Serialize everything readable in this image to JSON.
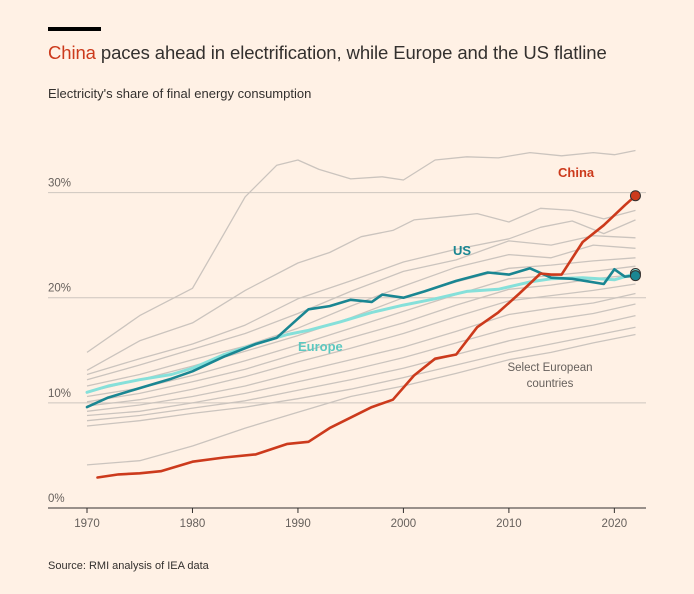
{
  "header": {
    "title_highlight": "China",
    "title_rest": " paces ahead in electrification, while Europe and the US flatline",
    "subtitle": "Electricity's share of final energy consumption"
  },
  "footer": {
    "source": "Source: RMI analysis of IEA data"
  },
  "colors": {
    "china": "#cc3a1c",
    "us": "#1a8692",
    "europe": "#86e0da",
    "countries": "#cbc4be",
    "grid": "#cec6bf",
    "text": "#33302e"
  },
  "chart_data": {
    "type": "line",
    "title": "China paces ahead in electrification, while Europe and the US flatline",
    "subtitle": "Electricity's share of final energy consumption",
    "xlabel": "",
    "ylabel": "",
    "xlim": [
      1970,
      2023
    ],
    "ylim": [
      0,
      35
    ],
    "x_ticks": [
      1970,
      1980,
      1990,
      2000,
      2010,
      2020
    ],
    "y_ticks": [
      0,
      10,
      20,
      30
    ],
    "y_tick_labels": [
      "0%",
      "10%",
      "20%",
      "30%"
    ],
    "grid": "horizontal",
    "annotations": [
      {
        "text": "China",
        "series": "China"
      },
      {
        "text": "US",
        "series": "US"
      },
      {
        "text": "Europe",
        "series": "Europe"
      },
      {
        "text": "Select European countries",
        "series": "countries"
      }
    ],
    "series": [
      {
        "name": "China",
        "x": [
          1971,
          1973,
          1975,
          1977,
          1980,
          1983,
          1986,
          1989,
          1991,
          1993,
          1995,
          1997,
          1999,
          2001,
          2003,
          2005,
          2007,
          2009,
          2011,
          2013,
          2014,
          2015,
          2017,
          2019,
          2021,
          2022
        ],
        "values": [
          2.9,
          3.2,
          3.3,
          3.5,
          4.4,
          4.8,
          5.1,
          6.1,
          6.3,
          7.6,
          8.6,
          9.6,
          10.3,
          12.6,
          14.2,
          14.6,
          17.2,
          18.6,
          20.4,
          22.3,
          22.2,
          22.2,
          25.3,
          26.9,
          28.8,
          29.7
        ]
      },
      {
        "name": "US",
        "x": [
          1970,
          1972,
          1975,
          1978,
          1980,
          1983,
          1986,
          1988,
          1990,
          1991,
          1993,
          1995,
          1997,
          1998,
          2000,
          2002,
          2005,
          2008,
          2010,
          2012,
          2014,
          2016,
          2019,
          2020,
          2021,
          2022
        ],
        "values": [
          9.6,
          10.5,
          11.4,
          12.3,
          13.0,
          14.4,
          15.6,
          16.2,
          18.0,
          18.9,
          19.2,
          19.8,
          19.6,
          20.3,
          20.0,
          20.6,
          21.6,
          22.4,
          22.2,
          22.8,
          21.9,
          21.8,
          21.3,
          22.7,
          22.0,
          22.1
        ]
      },
      {
        "name": "Europe",
        "x": [
          1970,
          1972,
          1975,
          1978,
          1980,
          1983,
          1986,
          1989,
          1991,
          1994,
          1997,
          2000,
          2003,
          2006,
          2009,
          2012,
          2014,
          2017,
          2020,
          2022
        ],
        "values": [
          11.0,
          11.6,
          12.2,
          12.7,
          13.3,
          14.6,
          15.6,
          16.5,
          16.9,
          17.7,
          18.6,
          19.3,
          19.9,
          20.6,
          20.8,
          21.5,
          21.8,
          21.9,
          21.7,
          22.3
        ]
      },
      {
        "name": "",
        "group": "countries",
        "x": [
          1970,
          1975,
          1980,
          1983,
          1985,
          1988,
          1990,
          1992,
          1995,
          1998,
          2000,
          2003,
          2006,
          2009,
          2012,
          2015,
          2018,
          2020,
          2022
        ],
        "values": [
          14.8,
          18.3,
          20.9,
          26.1,
          29.6,
          32.6,
          33.1,
          32.2,
          31.3,
          31.5,
          31.2,
          33.1,
          33.4,
          33.3,
          33.8,
          33.5,
          33.8,
          33.6,
          34.0
        ]
      },
      {
        "name": "",
        "group": "countries",
        "x": [
          1970,
          1975,
          1980,
          1985,
          1990,
          1993,
          1996,
          1999,
          2001,
          2004,
          2007,
          2010,
          2013,
          2016,
          2019,
          2022
        ],
        "values": [
          13.1,
          15.9,
          17.6,
          20.7,
          23.3,
          24.3,
          25.8,
          26.4,
          27.4,
          27.7,
          28.0,
          27.2,
          28.5,
          28.3,
          27.5,
          28.3
        ]
      },
      {
        "name": "",
        "group": "countries",
        "x": [
          1970,
          1975,
          1980,
          1985,
          1990,
          1995,
          2000,
          2005,
          2010,
          2013,
          2016,
          2019,
          2022
        ],
        "values": [
          12.7,
          14.2,
          15.6,
          17.4,
          19.9,
          21.6,
          23.4,
          24.6,
          25.6,
          26.7,
          27.3,
          26.1,
          27.4
        ]
      },
      {
        "name": "",
        "group": "countries",
        "x": [
          1970,
          1975,
          1980,
          1985,
          1990,
          1995,
          2000,
          2005,
          2010,
          2014,
          2018,
          2022
        ],
        "values": [
          12.2,
          13.6,
          15.1,
          16.6,
          18.5,
          20.6,
          22.5,
          23.6,
          25.4,
          25.0,
          25.9,
          25.7
        ]
      },
      {
        "name": "",
        "group": "countries",
        "x": [
          1970,
          1975,
          1980,
          1985,
          1990,
          1995,
          2000,
          2005,
          2010,
          2014,
          2018,
          2022
        ],
        "values": [
          11.6,
          12.7,
          14.1,
          15.4,
          17.1,
          19.2,
          21.1,
          22.9,
          24.1,
          23.8,
          25.0,
          24.7
        ]
      },
      {
        "name": "",
        "group": "countries",
        "x": [
          1970,
          1975,
          1980,
          1985,
          1990,
          1995,
          2000,
          2005,
          2010,
          2014,
          2018,
          2022
        ],
        "values": [
          11.0,
          12.2,
          13.5,
          14.9,
          16.4,
          18.1,
          20.0,
          21.5,
          22.8,
          23.1,
          23.5,
          23.8
        ]
      },
      {
        "name": "",
        "group": "countries",
        "x": [
          1970,
          1975,
          1980,
          1985,
          1990,
          1995,
          2000,
          2005,
          2010,
          2014,
          2018,
          2022
        ],
        "values": [
          10.6,
          11.4,
          12.6,
          14.0,
          15.5,
          17.1,
          18.7,
          20.3,
          21.8,
          22.1,
          22.5,
          23.0
        ]
      },
      {
        "name": "",
        "group": "countries",
        "x": [
          1970,
          1975,
          1980,
          1985,
          1990,
          1995,
          2000,
          2005,
          2010,
          2014,
          2018,
          2022
        ],
        "values": [
          10.1,
          10.9,
          12.0,
          13.2,
          14.7,
          16.2,
          17.6,
          19.3,
          20.8,
          21.2,
          21.8,
          22.2
        ]
      },
      {
        "name": "",
        "group": "countries",
        "x": [
          1970,
          1975,
          1980,
          1985,
          1990,
          1995,
          2000,
          2005,
          2010,
          2014,
          2018,
          2022
        ],
        "values": [
          9.7,
          10.3,
          11.3,
          12.5,
          13.9,
          15.2,
          16.6,
          18.2,
          19.7,
          20.2,
          20.7,
          21.3
        ]
      },
      {
        "name": "",
        "group": "countries",
        "x": [
          1970,
          1975,
          1980,
          1985,
          1990,
          1995,
          2000,
          2005,
          2010,
          2014,
          2018,
          2022
        ],
        "values": [
          9.2,
          9.8,
          10.6,
          11.6,
          12.9,
          14.1,
          15.3,
          16.8,
          18.4,
          19.0,
          19.5,
          20.4
        ]
      },
      {
        "name": "",
        "group": "countries",
        "x": [
          1970,
          1975,
          1980,
          1985,
          1990,
          1995,
          2000,
          2005,
          2010,
          2014,
          2018,
          2022
        ],
        "values": [
          8.8,
          9.2,
          10.0,
          10.9,
          12.0,
          13.1,
          14.3,
          15.7,
          17.1,
          17.9,
          18.5,
          19.4
        ]
      },
      {
        "name": "",
        "group": "countries",
        "x": [
          1970,
          1975,
          1980,
          1985,
          1990,
          1995,
          2000,
          2005,
          2010,
          2014,
          2018,
          2022
        ],
        "values": [
          8.3,
          8.8,
          9.5,
          10.2,
          11.2,
          12.2,
          13.3,
          14.6,
          15.9,
          16.7,
          17.4,
          18.3
        ]
      },
      {
        "name": "",
        "group": "countries",
        "x": [
          1970,
          1975,
          1980,
          1985,
          1990,
          1995,
          2000,
          2005,
          2010,
          2014,
          2018,
          2022
        ],
        "values": [
          7.8,
          8.3,
          9.0,
          9.6,
          10.4,
          11.3,
          12.4,
          13.6,
          14.8,
          15.6,
          16.4,
          17.2
        ]
      },
      {
        "name": "",
        "group": "countries",
        "x": [
          1970,
          1975,
          1980,
          1985,
          1990,
          1995,
          2000,
          2005,
          2010,
          2014,
          2018,
          2022
        ],
        "values": [
          4.1,
          4.5,
          5.9,
          7.6,
          9.1,
          10.6,
          11.6,
          12.8,
          14.1,
          14.8,
          15.7,
          16.5
        ]
      }
    ]
  }
}
